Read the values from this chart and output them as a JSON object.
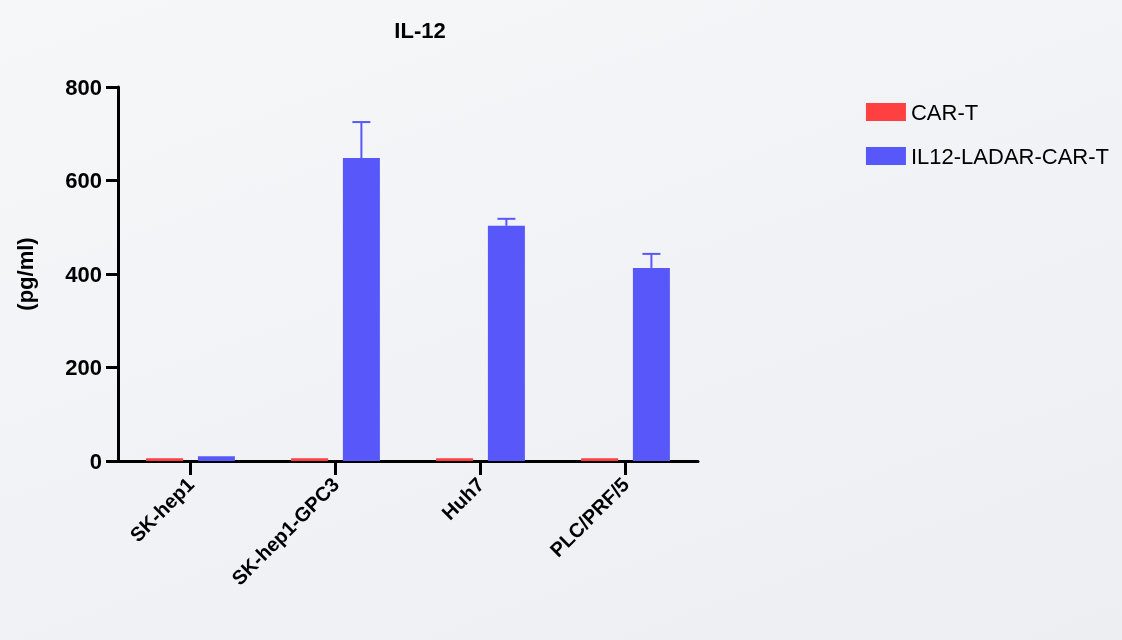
{
  "chart_data": {
    "type": "bar",
    "title": "IL-12",
    "ylabel": "(pg/ml)",
    "categories": [
      "SK-hep1",
      "SK-hep1-GPC3",
      "Huh7",
      "PLC/PRF/5"
    ],
    "series": [
      {
        "name": "CAR-T",
        "color": "#ff4040",
        "values": [
          6,
          6,
          6,
          6
        ]
      },
      {
        "name": "IL12-LADAR-CAR-T",
        "color": "#5858fa",
        "values": [
          10,
          648,
          503,
          413
        ],
        "errors": [
          null,
          [
            648,
            725
          ],
          [
            503,
            518
          ],
          [
            413,
            443
          ]
        ]
      }
    ],
    "ylim": [
      0,
      800
    ],
    "yticks": [
      0,
      200,
      400,
      600,
      800
    ],
    "grid": false,
    "legend": "top right"
  }
}
